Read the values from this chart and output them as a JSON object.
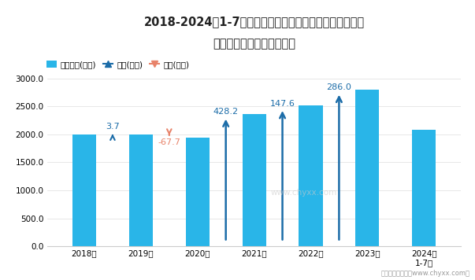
{
  "title_line1": "2018-2024年1-7月全国铁路、船舶、航空航天和其他运输",
  "title_line2": "设备制造业出口货值统计图",
  "bar_color": "#29B5E8",
  "categories": [
    "2018年",
    "2019年",
    "2020年",
    "2021年",
    "2022年",
    "2023年",
    "2024年\n1-7月"
  ],
  "values": [
    2000.0,
    2003.7,
    1936.0,
    2364.2,
    2511.8,
    2797.8,
    2083.0
  ],
  "changes": [
    null,
    3.7,
    -67.7,
    428.2,
    147.6,
    286.0,
    null
  ],
  "ylim": [
    0,
    3000
  ],
  "yticks": [
    0.0,
    500.0,
    1000.0,
    1500.0,
    2000.0,
    2500.0,
    3000.0
  ],
  "legend_bar_label": "出口货值(亿元)",
  "legend_up_label": "增加(亿元)",
  "legend_down_label": "减少(亿元)",
  "arrow_up_color": "#1B6CA8",
  "arrow_down_color": "#E8836A",
  "label_up_color": "#1B6CA8",
  "label_down_color": "#E8836A",
  "bg_color": "#FFFFFF",
  "footer": "制图：智研咨询（www.chyxx.com）",
  "watermark": "www.chyxx.com"
}
